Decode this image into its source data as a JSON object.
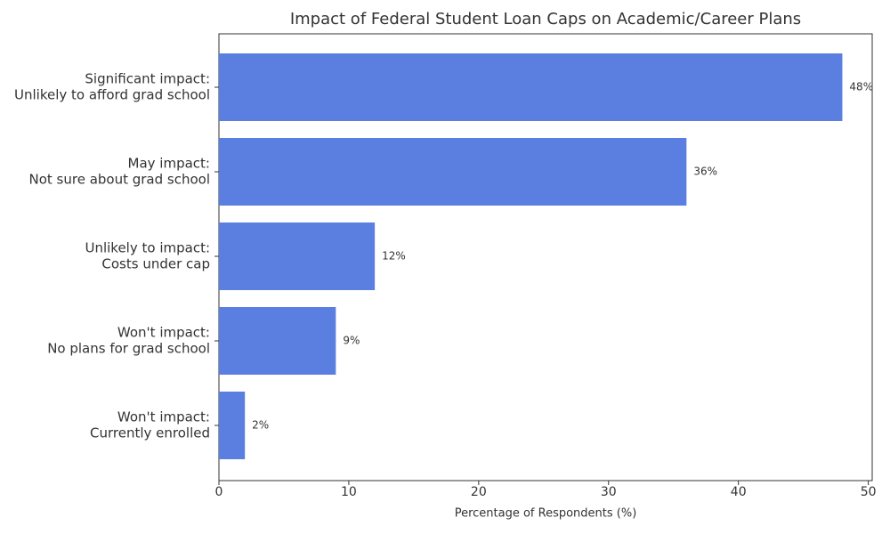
{
  "chart_data": {
    "type": "barh",
    "title": "Impact of Federal Student Loan Caps on Academic/Career Plans",
    "xlabel": "Percentage of Respondents (%)",
    "categories": [
      [
        "Significant impact:",
        "Unlikely to afford grad school"
      ],
      [
        "May impact:",
        "Not sure about grad school"
      ],
      [
        "Unlikely to impact:",
        "Costs under cap"
      ],
      [
        "Won't impact:",
        "No plans for grad school"
      ],
      [
        "Won't impact:",
        "Currently enrolled"
      ]
    ],
    "values": [
      48,
      36,
      12,
      9,
      2
    ],
    "value_labels": [
      "48%",
      "36%",
      "12%",
      "9%",
      "2%"
    ],
    "color": "#5b7fe0",
    "xlim": [
      0,
      50.3
    ],
    "xticks": [
      0,
      10,
      20,
      30,
      40,
      50
    ]
  }
}
